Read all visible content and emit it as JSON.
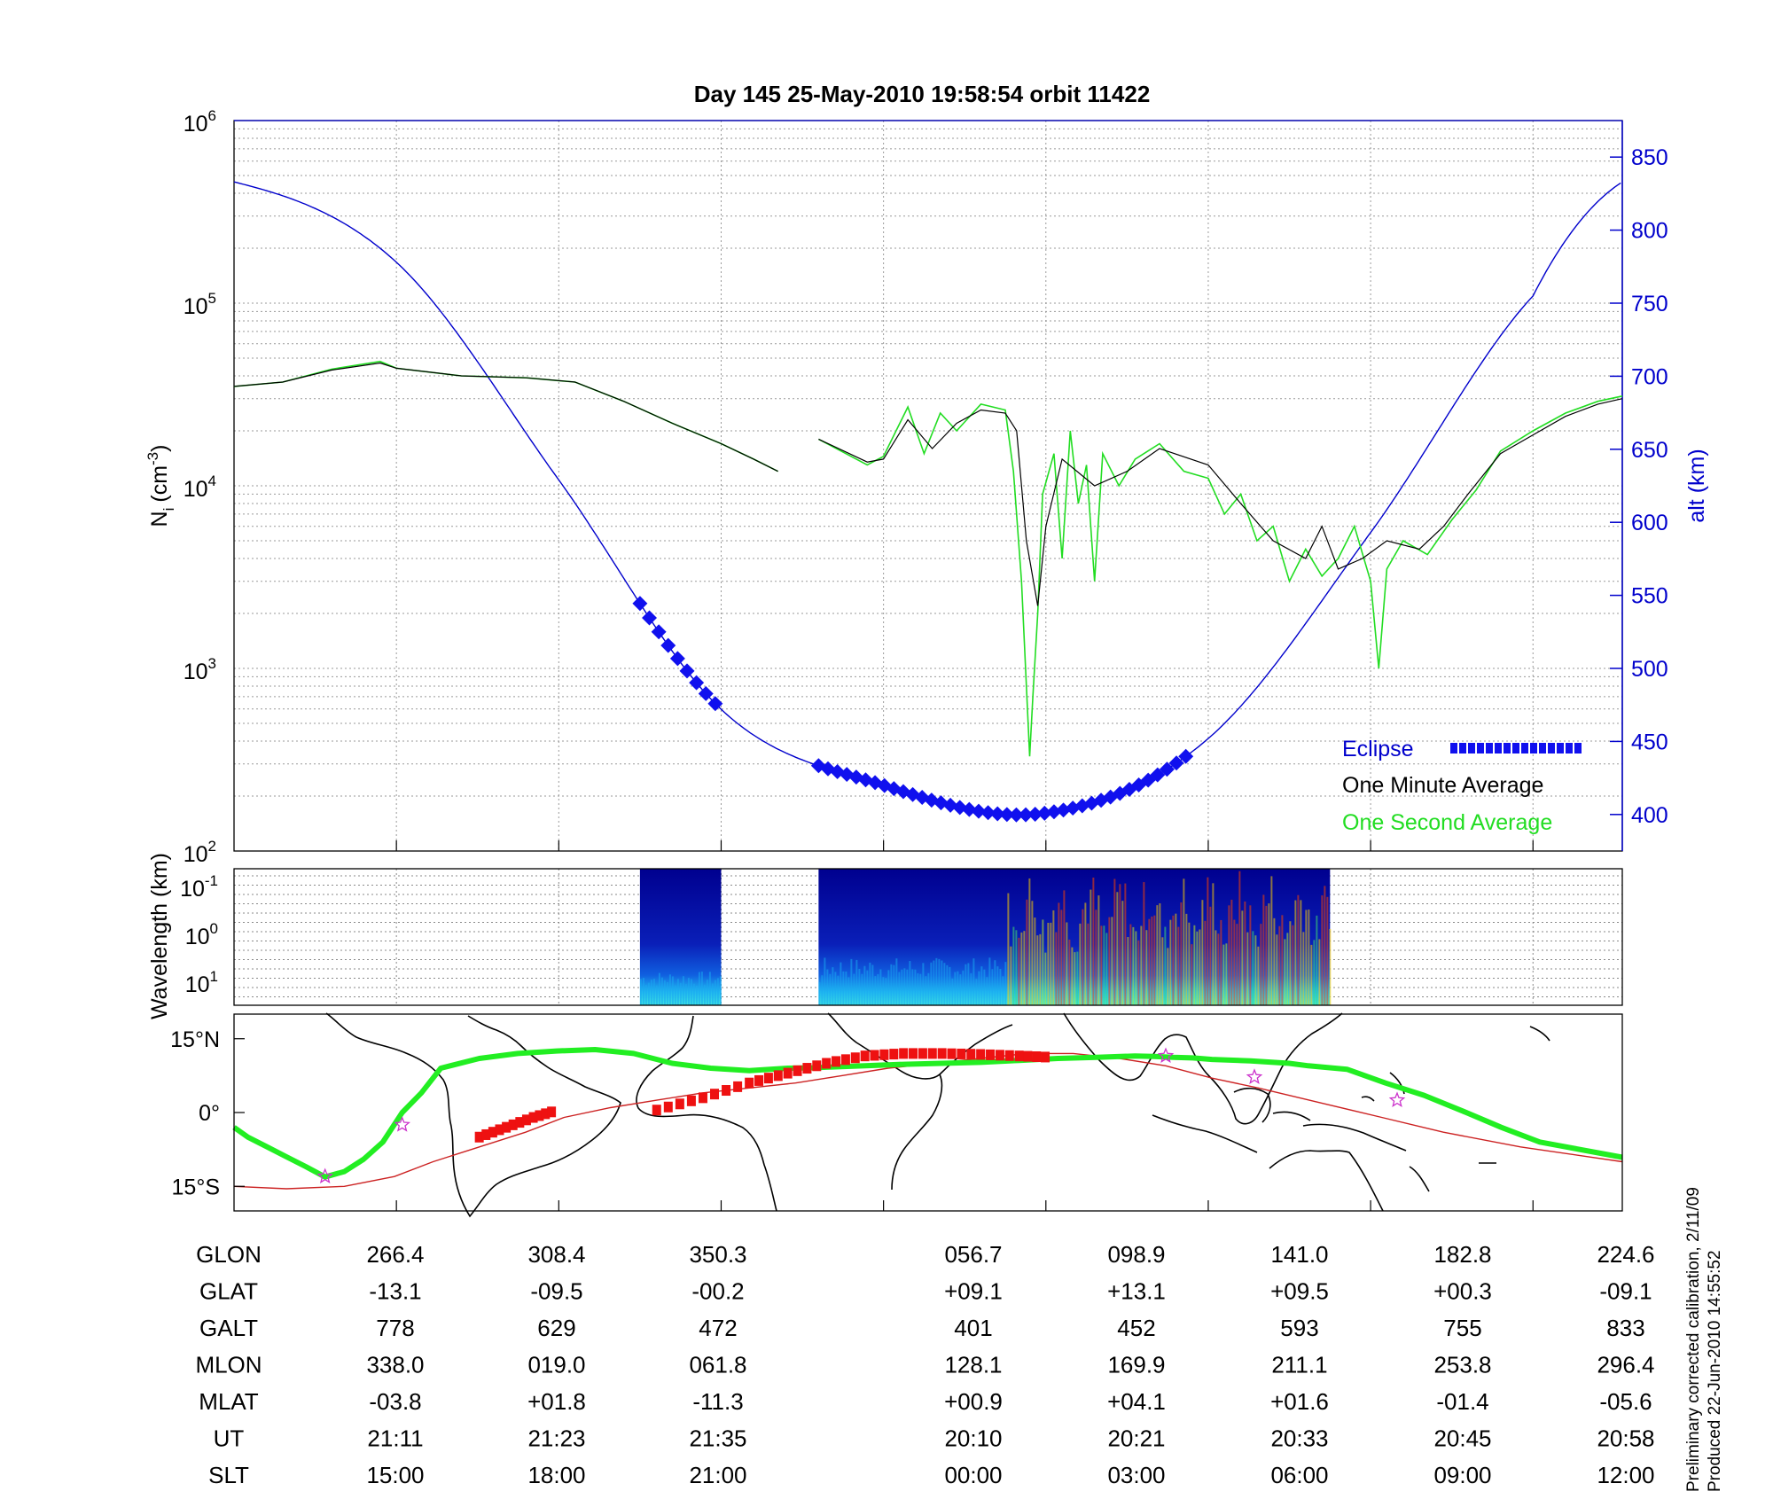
{
  "title": "Day 145  25-May-2010 19:58:54   orbit 11422",
  "footnote": {
    "line1": "Preliminary corrected calibration, 2/11/09",
    "line2": "Produced 22-Jun-2010 14:55:52"
  },
  "colors": {
    "altitude": "#0000cc",
    "eclipse": "#1010ee",
    "one_minute": "#000000",
    "one_second": "#22dd22",
    "map_track": "#22ee22",
    "magnetic_equator": "#cc2222",
    "map_eclipse": "#ee1111",
    "star": "#cc33cc"
  },
  "chart_data": [
    {
      "type": "line",
      "panel": "density",
      "ylabel_left": "N",
      "ylabel_left_sub": "i",
      "ylabel_left_unit": "(cm",
      "ylabel_left_unit_exp": "-3",
      "ylabel_left_unit_close": ")",
      "ylabel_right": "alt (km)",
      "y_left_scale": "log",
      "y_left_range": [
        100,
        1000000
      ],
      "y_left_ticks": [
        {
          "base": "10",
          "exp": "2",
          "value": 100
        },
        {
          "base": "10",
          "exp": "3",
          "value": 1000
        },
        {
          "base": "10",
          "exp": "4",
          "value": 10000
        },
        {
          "base": "10",
          "exp": "5",
          "value": 100000
        },
        {
          "base": "10",
          "exp": "6",
          "value": 1000000
        }
      ],
      "y_right_range": [
        375,
        875
      ],
      "y_right_ticks": [
        "400",
        "450",
        "500",
        "550",
        "600",
        "650",
        "700",
        "750",
        "800",
        "850"
      ],
      "x_range": [
        0,
        8.55
      ],
      "grid": true,
      "legend_position": "bottom-right",
      "legend": [
        {
          "label": "Eclipse",
          "color": "#0000cc"
        },
        {
          "label": "One Minute Average",
          "color": "#000000"
        },
        {
          "label": "One Second Average",
          "color": "#22dd22"
        }
      ],
      "series": [
        {
          "name": "One Minute Average",
          "axis": "left",
          "segments": [
            [
              [
                0,
                35000
              ],
              [
                0.3,
                37000
              ],
              [
                0.6,
                43000
              ],
              [
                0.9,
                47000
              ],
              [
                1.0,
                44000
              ],
              [
                1.4,
                40000
              ],
              [
                1.8,
                39000
              ],
              [
                2.1,
                37000
              ],
              [
                2.4,
                29000
              ],
              [
                2.7,
                22000
              ],
              [
                3.0,
                17000
              ],
              [
                3.2,
                14000
              ],
              [
                3.35,
                12000
              ]
            ],
            [
              [
                3.6,
                18000
              ],
              [
                3.9,
                13500
              ],
              [
                4.0,
                14000
              ],
              [
                4.15,
                23000
              ],
              [
                4.3,
                16000
              ],
              [
                4.45,
                22000
              ],
              [
                4.6,
                26000
              ],
              [
                4.75,
                25000
              ],
              [
                4.82,
                20000
              ],
              [
                4.88,
                5000
              ],
              [
                4.95,
                2200
              ],
              [
                5.0,
                6000
              ],
              [
                5.1,
                14000
              ],
              [
                5.3,
                10000
              ],
              [
                5.5,
                12000
              ],
              [
                5.7,
                16000
              ],
              [
                6.0,
                13000
              ],
              [
                6.2,
                8000
              ],
              [
                6.4,
                5000
              ],
              [
                6.6,
                4000
              ],
              [
                6.7,
                6000
              ],
              [
                6.8,
                3500
              ],
              [
                6.95,
                4000
              ],
              [
                7.1,
                5000
              ],
              [
                7.3,
                4500
              ],
              [
                7.45,
                6000
              ],
              [
                7.6,
                9000
              ],
              [
                7.8,
                15000
              ],
              [
                8.0,
                19000
              ],
              [
                8.2,
                24000
              ],
              [
                8.4,
                28000
              ],
              [
                8.55,
                30000
              ]
            ]
          ]
        },
        {
          "name": "One Second Average",
          "axis": "left",
          "segments": [
            [
              [
                0,
                35000
              ],
              [
                0.3,
                37000
              ],
              [
                0.6,
                43500
              ],
              [
                0.9,
                48000
              ],
              [
                1.0,
                44000
              ],
              [
                1.4,
                40000
              ],
              [
                1.8,
                39000
              ],
              [
                2.1,
                37000
              ],
              [
                2.4,
                29000
              ],
              [
                2.7,
                22000
              ],
              [
                3.0,
                17000
              ],
              [
                3.2,
                14000
              ],
              [
                3.35,
                12000
              ]
            ],
            [
              [
                3.6,
                18000
              ],
              [
                3.9,
                13000
              ],
              [
                4.0,
                14500
              ],
              [
                4.15,
                27000
              ],
              [
                4.25,
                15000
              ],
              [
                4.35,
                25000
              ],
              [
                4.45,
                20000
              ],
              [
                4.6,
                28000
              ],
              [
                4.75,
                26000
              ],
              [
                4.8,
                12000
              ],
              [
                4.85,
                3000
              ],
              [
                4.88,
                800
              ],
              [
                4.9,
                330
              ],
              [
                4.92,
                700
              ],
              [
                4.95,
                2000
              ],
              [
                4.98,
                9000
              ],
              [
                5.05,
                15000
              ],
              [
                5.1,
                4000
              ],
              [
                5.15,
                20000
              ],
              [
                5.2,
                8000
              ],
              [
                5.25,
                13000
              ],
              [
                5.3,
                3000
              ],
              [
                5.35,
                15000
              ],
              [
                5.45,
                10000
              ],
              [
                5.55,
                14000
              ],
              [
                5.7,
                17000
              ],
              [
                5.85,
                12000
              ],
              [
                6.0,
                11000
              ],
              [
                6.1,
                7000
              ],
              [
                6.2,
                9000
              ],
              [
                6.3,
                5000
              ],
              [
                6.4,
                6000
              ],
              [
                6.5,
                3000
              ],
              [
                6.6,
                4500
              ],
              [
                6.7,
                3200
              ],
              [
                6.8,
                4000
              ],
              [
                6.9,
                6000
              ],
              [
                7.0,
                3000
              ],
              [
                7.05,
                1000
              ],
              [
                7.1,
                3500
              ],
              [
                7.2,
                5000
              ],
              [
                7.35,
                4200
              ],
              [
                7.5,
                6500
              ],
              [
                7.65,
                9500
              ],
              [
                7.8,
                15500
              ],
              [
                8.0,
                20000
              ],
              [
                8.2,
                25000
              ],
              [
                8.4,
                29000
              ],
              [
                8.55,
                31000
              ]
            ]
          ]
        },
        {
          "name": "Altitude",
          "axis": "right",
          "x": [
            0,
            1,
            2,
            3,
            4,
            5,
            6,
            7,
            8,
            8.55
          ],
          "values": [
            833,
            778,
            629,
            472,
            420,
            401,
            452,
            593,
            755,
            833
          ]
        },
        {
          "name": "Eclipse",
          "axis": "right",
          "segments": [
            [
              2.5,
              3.0
            ],
            [
              3.6,
              5.9
            ]
          ]
        }
      ]
    },
    {
      "type": "heatmap",
      "panel": "spectrogram",
      "ylabel": "Wavelength (km)",
      "y_scale": "log",
      "y_ticks": [
        {
          "base": "10",
          "exp": "-1"
        },
        {
          "base": "10",
          "exp": "0"
        },
        {
          "base": "10",
          "exp": "1"
        }
      ],
      "colormap": "jet",
      "segments": [
        [
          2.5,
          3.0
        ],
        [
          3.6,
          6.75
        ]
      ]
    },
    {
      "type": "map",
      "panel": "ground-track",
      "y_ticks": [
        "15°N",
        "0°",
        "15°S"
      ],
      "lat_range": [
        -20,
        20
      ],
      "series": [
        {
          "name": "Satellite track",
          "lat": [
            -3,
            -5,
            -7,
            -9,
            -11,
            -13.1,
            -12,
            -9.5,
            -6,
            0,
            4,
            9,
            11,
            12,
            12.5,
            12.8,
            12,
            10,
            9,
            8.5,
            9,
            9.1,
            9.2,
            9.5,
            9.8,
            10,
            10.2,
            10.6,
            11,
            11.2,
            11.5,
            11.4,
            11.2,
            11.1,
            10.8,
            10.5,
            10,
            9.5,
            8.8,
            6,
            3.5,
            0.3,
            -3,
            -6,
            -9.1
          ],
          "lon": [
            266.4,
            270,
            275,
            280,
            285,
            290,
            295,
            300,
            305,
            310,
            315,
            320,
            330,
            340,
            350,
            360,
            370,
            380,
            390,
            400,
            410,
            416.7,
            420,
            430,
            440,
            450,
            460,
            470,
            480,
            490,
            500,
            505,
            510,
            515,
            520,
            530,
            540,
            545,
            555,
            565,
            575,
            585,
            595,
            605,
            626.4
          ]
        },
        {
          "name": "Magnetic equator",
          "lat": [
            -15,
            -15.5,
            -15,
            -13,
            -10,
            -7,
            -4,
            -1,
            1,
            2.5,
            4,
            5,
            6,
            7.5,
            9,
            10,
            11,
            12,
            12,
            11,
            9.5,
            7,
            5,
            2,
            -1,
            -4,
            -7,
            -10
          ],
          "lon": [
            266.4,
            280,
            295,
            308,
            318,
            330,
            342,
            352,
            364,
            376,
            388,
            400,
            412,
            424,
            436,
            448,
            460,
            472,
            484,
            496,
            508,
            520,
            532,
            548,
            564,
            580,
            600,
            626.4
          ]
        },
        {
          "name": "Eclipse",
          "segments": [
            {
              "lat": [
                -5,
                -3,
                -1,
                0.5
              ],
              "lon": [
                330,
                337,
                344,
                350.3
              ]
            },
            {
              "lat": [
                0.5,
                3,
                6,
                8,
                10,
                11.5,
                12,
                12,
                11.8,
                11.5,
                11.2
              ],
              "lon": [
                376,
                388,
                400,
                410,
                420,
                430,
                440,
                450,
                460,
                470,
                479
              ]
            }
          ]
        }
      ],
      "stars_lat": [
        -2.5,
        -13,
        11.5,
        7.2,
        2.5
      ],
      "stars_lon": [
        310,
        290,
        508,
        531,
        568
      ]
    }
  ],
  "table": {
    "rows": [
      {
        "label": "GLON",
        "values": [
          "266.4",
          "308.4",
          "350.3",
          "056.7",
          "098.9",
          "141.0",
          "182.8",
          "224.6"
        ]
      },
      {
        "label": "GLAT",
        "values": [
          "-13.1",
          "-09.5",
          "-00.2",
          "+09.1",
          "+13.1",
          "+09.5",
          "+00.3",
          "-09.1"
        ]
      },
      {
        "label": "GALT",
        "values": [
          "778",
          "629",
          "472",
          "401",
          "452",
          "593",
          "755",
          "833"
        ]
      },
      {
        "label": "MLON",
        "values": [
          "338.0",
          "019.0",
          "061.8",
          "128.1",
          "169.9",
          "211.1",
          "253.8",
          "296.4"
        ]
      },
      {
        "label": "MLAT",
        "values": [
          "-03.8",
          "+01.8",
          "-11.3",
          "+00.9",
          "+04.1",
          "+01.6",
          "-01.4",
          "-05.6"
        ]
      },
      {
        "label": "UT",
        "values": [
          "21:11",
          "21:23",
          "21:35",
          "20:10",
          "20:21",
          "20:33",
          "20:45",
          "20:58"
        ]
      },
      {
        "label": "SLT",
        "values": [
          "15:00",
          "18:00",
          "21:00",
          "00:00",
          "03:00",
          "06:00",
          "09:00",
          "12:00"
        ]
      }
    ]
  }
}
